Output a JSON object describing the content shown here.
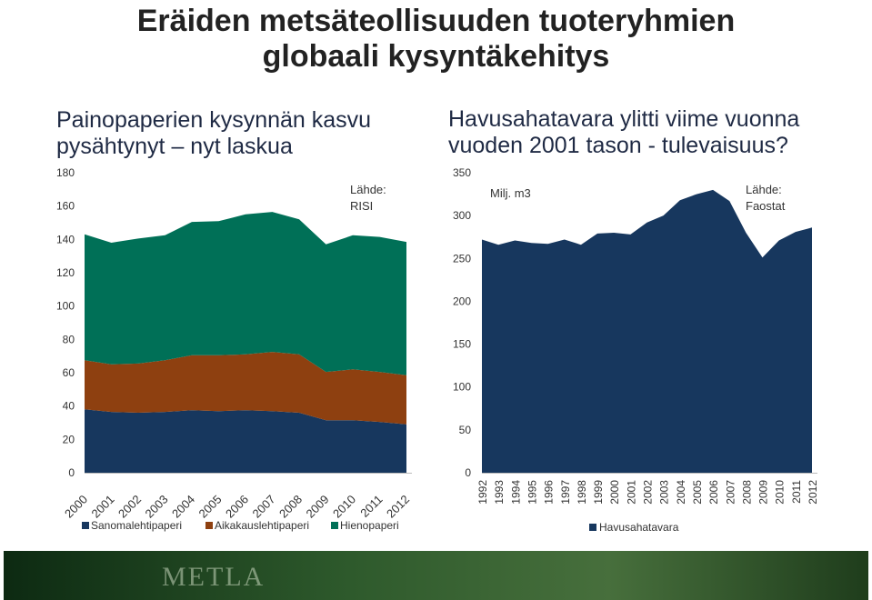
{
  "page": {
    "title_line1": "Eräiden metsäteollisuuden tuoteryhmien",
    "title_line2": "globaali kysyntäkehitys",
    "footer_logo": "METLA"
  },
  "chart_data": [
    {
      "type": "area",
      "stacked": true,
      "title_line1": "Painopaperien kysynnän kasvu",
      "title_line2": "pysähtynyt – nyt laskua",
      "annotation_line1": "Lähde:",
      "annotation_line2": "RISI",
      "x": [
        "2000",
        "2001",
        "2002",
        "2003",
        "2004",
        "2005",
        "2006",
        "2007",
        "2008",
        "2009",
        "2010",
        "2011",
        "2012"
      ],
      "ylim": [
        0,
        180
      ],
      "yticks": [
        0,
        20,
        40,
        60,
        80,
        100,
        120,
        140,
        160,
        180
      ],
      "legend_position": "bottom",
      "series": [
        {
          "name": "Sanomalehtipaperi",
          "color": "#17375e",
          "values": [
            38,
            36.5,
            36,
            36.5,
            37.5,
            37,
            37.5,
            37,
            36,
            31.5,
            31.5,
            30.5,
            29
          ]
        },
        {
          "name": "Aikakauslehtipaperi",
          "color": "#8e4010",
          "values": [
            29.5,
            28.5,
            29.5,
            31,
            33,
            33.5,
            33.5,
            35.5,
            35,
            29,
            30.5,
            30,
            29.5
          ]
        },
        {
          "name": "Hienopaperi",
          "color": "#007057",
          "values": [
            75.5,
            73,
            75,
            75,
            80,
            80.5,
            84,
            84,
            81,
            76.5,
            80.5,
            81,
            80
          ]
        }
      ]
    },
    {
      "type": "area",
      "title_line1": "Havusahatavara ylitti viime vuonna",
      "title_line2": "vuoden 2001 tason - tulevaisuus?",
      "unit_label": "Milj. m3",
      "annotation_line1": "Lähde:",
      "annotation_line2": "Faostat",
      "x": [
        "1992",
        "1993",
        "1994",
        "1995",
        "1996",
        "1997",
        "1998",
        "1999",
        "2000",
        "2001",
        "2002",
        "2003",
        "2004",
        "2005",
        "2006",
        "2007",
        "2008",
        "2009",
        "2010",
        "2011",
        "2012"
      ],
      "ylim": [
        0,
        350
      ],
      "yticks": [
        0,
        50,
        100,
        150,
        200,
        250,
        300,
        350
      ],
      "legend_position": "bottom",
      "series": [
        {
          "name": "Havusahatavara",
          "color": "#17375e",
          "values": [
            272,
            266,
            271,
            268,
            267,
            272,
            266,
            279,
            280,
            278,
            292,
            300,
            318,
            325,
            330,
            317,
            280,
            251,
            271,
            281,
            286
          ]
        }
      ]
    }
  ]
}
